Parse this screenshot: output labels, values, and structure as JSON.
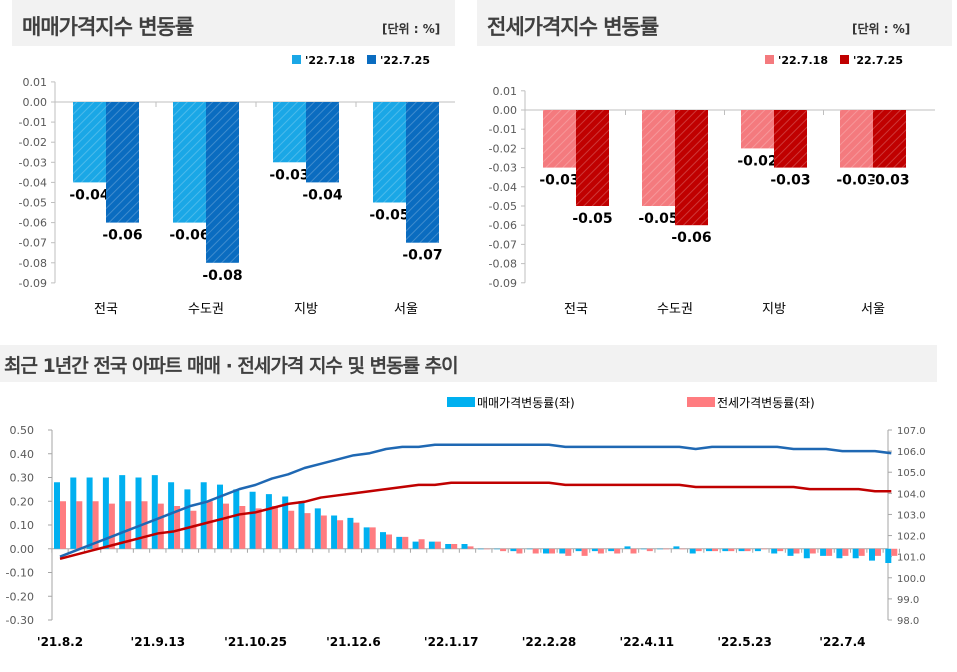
{
  "chart_data": [
    {
      "type": "bar",
      "title": "매매가격지수 변동률",
      "unit_label": "[단위 : %]",
      "categories": [
        "전국",
        "수도권",
        "지방",
        "서울"
      ],
      "series": [
        {
          "name": "'22.7.18",
          "values": [
            -0.04,
            -0.06,
            -0.03,
            -0.05
          ],
          "color": "#1aa7e6"
        },
        {
          "name": "'22.7.25",
          "values": [
            -0.06,
            -0.08,
            -0.04,
            -0.07
          ],
          "color": "#0a6cc0"
        }
      ],
      "ylim": [
        -0.09,
        0.01
      ],
      "yticks": [
        "0.01",
        "0.00",
        "-0.01",
        "-0.02",
        "-0.03",
        "-0.04",
        "-0.05",
        "-0.06",
        "-0.07",
        "-0.08",
        "-0.09"
      ],
      "data_labels": true,
      "legend": "top-right"
    },
    {
      "type": "bar",
      "title": "전세가격지수 변동률",
      "unit_label": "[단위 : %]",
      "categories": [
        "전국",
        "수도권",
        "지방",
        "서울"
      ],
      "series": [
        {
          "name": "'22.7.18",
          "values": [
            -0.03,
            -0.05,
            -0.02,
            -0.03
          ],
          "color": "#f47a7e"
        },
        {
          "name": "'22.7.25",
          "values": [
            -0.05,
            -0.06,
            -0.03,
            -0.03
          ],
          "color": "#c00000"
        }
      ],
      "ylim": [
        -0.09,
        0.01
      ],
      "yticks": [
        "0.01",
        "0.00",
        "-0.01",
        "-0.02",
        "-0.03",
        "-0.04",
        "-0.05",
        "-0.06",
        "-0.07",
        "-0.08",
        "-0.09"
      ],
      "data_labels": true,
      "legend": "top-right"
    },
    {
      "type": "bar+line",
      "title": "최근 1년간 전국 아파트 매매 · 전세가격 지수 및 변동률 추이",
      "x_tick_labels": [
        "'21.8.2",
        "'21.9.13",
        "'21.10.25",
        "'21.12.6",
        "'22.1.17",
        "'22.2.28",
        "'22.4.11",
        "'22.5.23",
        "'22.7.4"
      ],
      "x_tick_every_weeks": 6,
      "weeks": 52,
      "y_left": {
        "lim": [
          -0.3,
          0.5
        ],
        "ticks": [
          "0.50",
          "0.40",
          "0.30",
          "0.20",
          "0.10",
          "0.00",
          "-0.10",
          "-0.20",
          "-0.30"
        ]
      },
      "y_right": {
        "lim": [
          98.0,
          107.0
        ],
        "ticks": [
          "107.0",
          "106.0",
          "105.0",
          "104.0",
          "103.0",
          "102.0",
          "101.0",
          "100.0",
          "99.0",
          "98.0"
        ]
      },
      "legend": "top-right",
      "series": [
        {
          "name": "매매가격변동률(좌)",
          "type": "bar",
          "axis": "left",
          "color": "#00b0f0",
          "values": [
            0.28,
            0.3,
            0.3,
            0.3,
            0.31,
            0.3,
            0.31,
            0.28,
            0.25,
            0.28,
            0.27,
            0.25,
            0.24,
            0.23,
            0.22,
            0.2,
            0.17,
            0.14,
            0.13,
            0.09,
            0.07,
            0.05,
            0.03,
            0.03,
            0.02,
            0.02,
            0.0,
            0.0,
            -0.01,
            0.0,
            -0.02,
            -0.02,
            -0.01,
            -0.01,
            -0.01,
            0.01,
            0.0,
            0.0,
            0.01,
            -0.02,
            -0.01,
            -0.01,
            -0.01,
            -0.01,
            -0.02,
            -0.03,
            -0.04,
            -0.03,
            -0.04,
            -0.04,
            -0.05,
            -0.06
          ]
        },
        {
          "name": "전세가격변동률(좌)",
          "type": "bar",
          "axis": "left",
          "color": "#ff7c80",
          "values": [
            0.2,
            0.2,
            0.2,
            0.19,
            0.2,
            0.2,
            0.19,
            0.18,
            0.16,
            0.2,
            0.19,
            0.18,
            0.17,
            0.18,
            0.16,
            0.15,
            0.14,
            0.12,
            0.11,
            0.09,
            0.06,
            0.05,
            0.04,
            0.03,
            0.02,
            0.01,
            0.0,
            -0.01,
            -0.02,
            -0.02,
            -0.02,
            -0.03,
            -0.03,
            -0.02,
            -0.02,
            -0.02,
            -0.01,
            0.0,
            0.0,
            -0.01,
            -0.01,
            -0.01,
            -0.01,
            0.0,
            -0.01,
            -0.02,
            -0.02,
            -0.03,
            -0.03,
            -0.03,
            -0.03,
            -0.03
          ]
        },
        {
          "type": "line",
          "axis": "right",
          "color": "#1f68b3",
          "values": [
            101.0,
            101.3,
            101.6,
            101.9,
            102.2,
            102.5,
            102.8,
            103.1,
            103.4,
            103.6,
            103.9,
            104.2,
            104.4,
            104.7,
            104.9,
            105.2,
            105.4,
            105.6,
            105.8,
            105.9,
            106.1,
            106.2,
            106.2,
            106.3,
            106.3,
            106.3,
            106.3,
            106.3,
            106.3,
            106.3,
            106.3,
            106.2,
            106.2,
            106.2,
            106.2,
            106.2,
            106.2,
            106.2,
            106.2,
            106.1,
            106.2,
            106.2,
            106.2,
            106.2,
            106.2,
            106.1,
            106.1,
            106.1,
            106.0,
            106.0,
            106.0,
            105.9
          ]
        },
        {
          "type": "line",
          "axis": "right",
          "color": "#c00000",
          "values": [
            100.9,
            101.1,
            101.3,
            101.5,
            101.7,
            101.9,
            102.1,
            102.2,
            102.4,
            102.6,
            102.8,
            103.0,
            103.1,
            103.3,
            103.5,
            103.6,
            103.8,
            103.9,
            104.0,
            104.1,
            104.2,
            104.3,
            104.4,
            104.4,
            104.5,
            104.5,
            104.5,
            104.5,
            104.5,
            104.5,
            104.5,
            104.4,
            104.4,
            104.4,
            104.4,
            104.4,
            104.4,
            104.4,
            104.4,
            104.3,
            104.3,
            104.3,
            104.3,
            104.3,
            104.3,
            104.3,
            104.2,
            104.2,
            104.2,
            104.2,
            104.1,
            104.1
          ]
        }
      ]
    }
  ]
}
